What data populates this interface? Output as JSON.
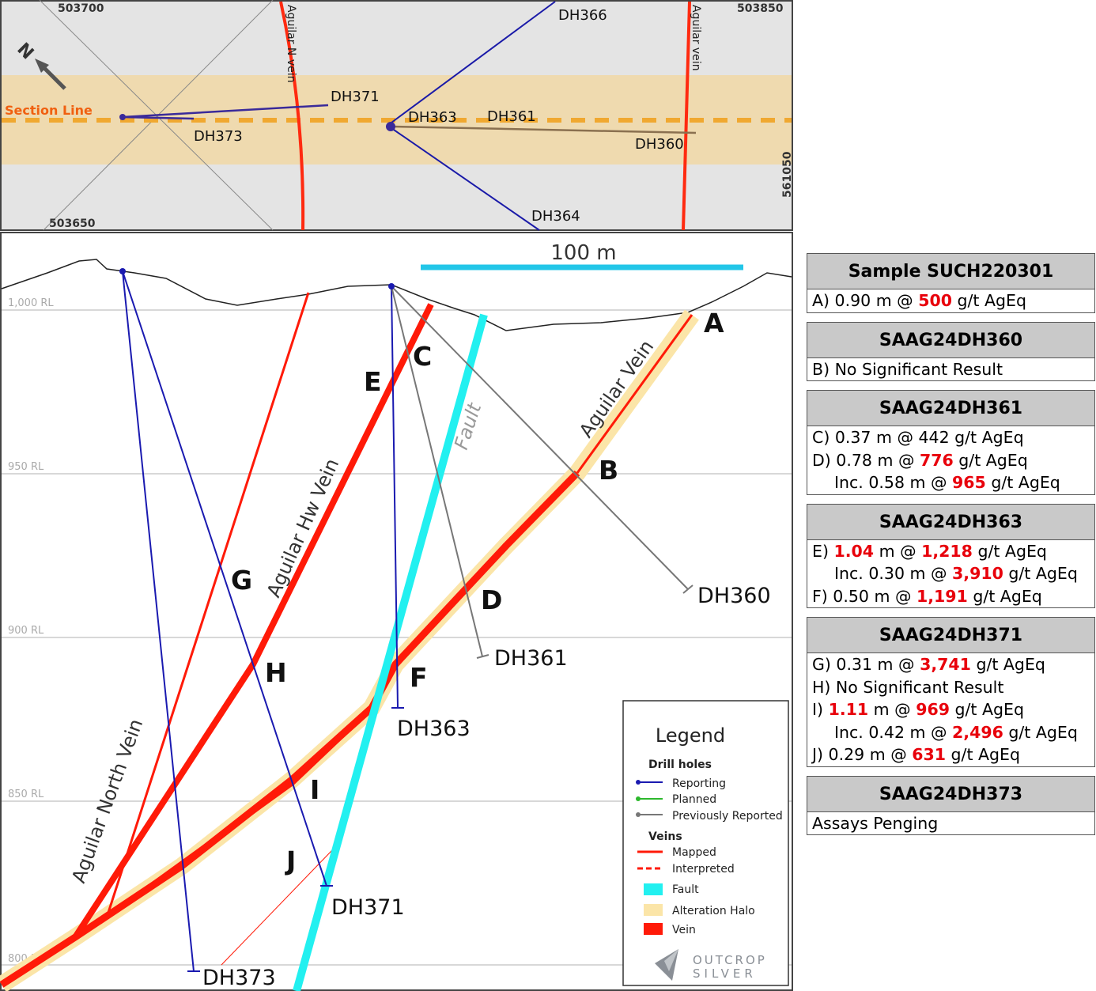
{
  "map": {
    "coords": [
      "503700",
      "503850",
      "503650",
      "561050"
    ],
    "section_line": "Section Line",
    "veins": [
      "Aguilar N vein",
      "Aguilar vein"
    ],
    "holes": [
      "DH366",
      "DH371",
      "DH363",
      "DH361",
      "DH373",
      "DH360",
      "DH364"
    ]
  },
  "section": {
    "scale": "100 m",
    "levels": [
      "1,000 RL",
      "950 RL",
      "900 RL",
      "850 RL",
      "800 RL"
    ],
    "veins": [
      "Aguilar Vein",
      "Aguilar Hw Vein",
      "Aguilar North Vein",
      "Fault"
    ],
    "points": [
      "A",
      "B",
      "C",
      "D",
      "E",
      "F",
      "G",
      "H",
      "I",
      "J"
    ],
    "holes": [
      "DH360",
      "DH361",
      "DH363",
      "DH371",
      "DH373"
    ]
  },
  "legend": {
    "title": "Legend",
    "drill_holes": "Drill holes",
    "hole_types": [
      "Reporting",
      "Planned",
      "Previously Reported"
    ],
    "veins": "Veins",
    "vein_types": [
      "Mapped",
      "Interpreted",
      "Fault",
      "Alteration Halo",
      "Vein"
    ],
    "logo": [
      "OUTCROP",
      "SILVER"
    ]
  },
  "results": [
    {
      "title": "Sample SUCH220301",
      "rows": [
        {
          "indent": false,
          "parts": [
            {
              "text": "A) 0.90 m @ ",
              "red": false
            },
            {
              "text": "500",
              "red": true
            },
            {
              "text": " g/t AgEq",
              "red": false
            }
          ]
        }
      ]
    },
    {
      "title": "SAAG24DH360",
      "rows": [
        {
          "indent": false,
          "parts": [
            {
              "text": "B) No Significant Result",
              "red": false
            }
          ]
        }
      ]
    },
    {
      "title": "SAAG24DH361",
      "rows": [
        {
          "indent": false,
          "parts": [
            {
              "text": "C) 0.37 m @ 442 g/t AgEq",
              "red": false
            }
          ]
        },
        {
          "indent": false,
          "parts": [
            {
              "text": "D) 0.78 m @ ",
              "red": false
            },
            {
              "text": "776",
              "red": true
            },
            {
              "text": " g/t AgEq",
              "red": false
            }
          ]
        },
        {
          "indent": true,
          "parts": [
            {
              "text": "Inc. 0.58 m @ ",
              "red": false
            },
            {
              "text": "965",
              "red": true
            },
            {
              "text": " g/t AgEq",
              "red": false
            }
          ]
        }
      ]
    },
    {
      "title": "SAAG24DH363",
      "rows": [
        {
          "indent": false,
          "parts": [
            {
              "text": "E) ",
              "red": false
            },
            {
              "text": "1.04",
              "red": true
            },
            {
              "text": " m @ ",
              "red": false
            },
            {
              "text": "1,218",
              "red": true
            },
            {
              "text": " g/t AgEq",
              "red": false
            }
          ]
        },
        {
          "indent": true,
          "parts": [
            {
              "text": "Inc. 0.30 m @ ",
              "red": false
            },
            {
              "text": "3,910",
              "red": true
            },
            {
              "text": " g/t AgEq",
              "red": false
            }
          ]
        },
        {
          "indent": false,
          "parts": [
            {
              "text": "F) 0.50 m @ ",
              "red": false
            },
            {
              "text": "1,191",
              "red": true
            },
            {
              "text": " g/t AgEq",
              "red": false
            }
          ]
        }
      ]
    },
    {
      "title": "SAAG24DH371",
      "rows": [
        {
          "indent": false,
          "parts": [
            {
              "text": "G) 0.31 m @ ",
              "red": false
            },
            {
              "text": "3,741",
              "red": true
            },
            {
              "text": " g/t AgEq",
              "red": false
            }
          ]
        },
        {
          "indent": false,
          "parts": [
            {
              "text": "H) No Significant Result",
              "red": false
            }
          ]
        },
        {
          "indent": false,
          "parts": [
            {
              "text": "I) ",
              "red": false
            },
            {
              "text": "1.11",
              "red": true
            },
            {
              "text": " m @ ",
              "red": false
            },
            {
              "text": "969",
              "red": true
            },
            {
              "text": " g/t AgEq",
              "red": false
            }
          ]
        },
        {
          "indent": true,
          "parts": [
            {
              "text": "Inc. 0.42 m @ ",
              "red": false
            },
            {
              "text": "2,496",
              "red": true
            },
            {
              "text": " g/t AgEq",
              "red": false
            }
          ]
        },
        {
          "indent": false,
          "parts": [
            {
              "text": "J) 0.29 m @ ",
              "red": false
            },
            {
              "text": "631",
              "red": true
            },
            {
              "text": " g/t AgEq",
              "red": false
            }
          ]
        }
      ]
    },
    {
      "title": "SAAG24DH373",
      "rows": [
        {
          "indent": false,
          "parts": [
            {
              "text": "Assays Penging",
              "red": false
            }
          ]
        }
      ]
    }
  ]
}
